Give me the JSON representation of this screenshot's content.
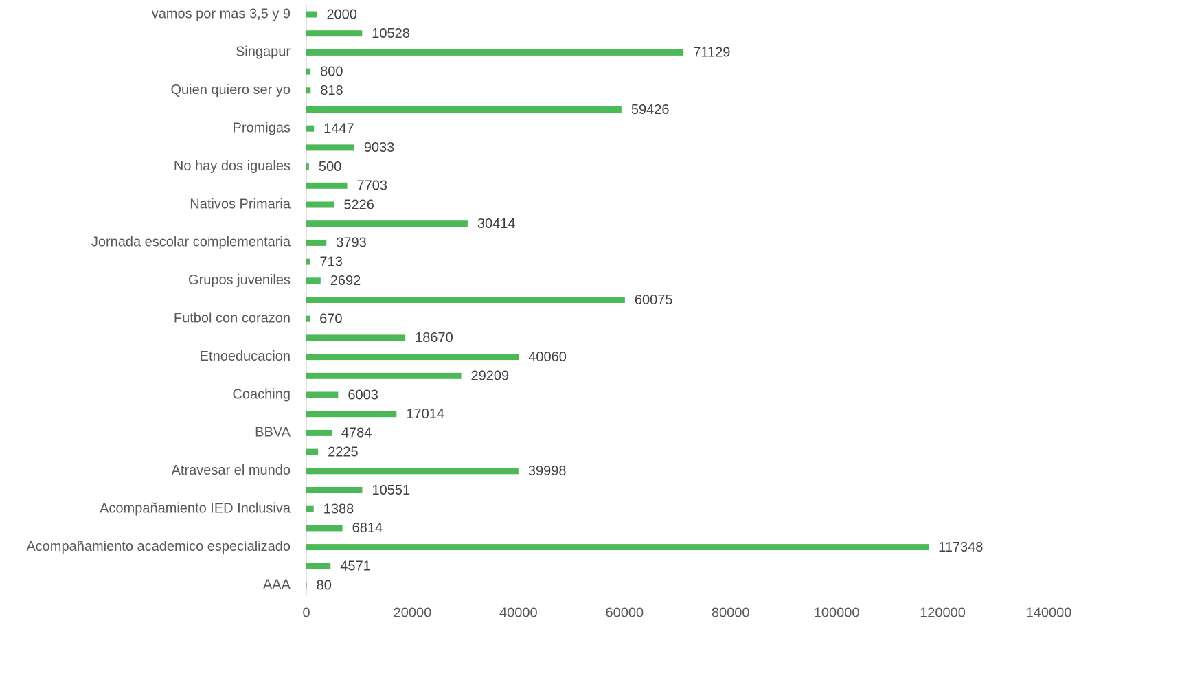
{
  "chart_data": {
    "type": "barh",
    "categories": [
      "vamos por mas 3,5 y 9",
      null,
      "Singapur",
      null,
      "Quien quiero ser yo",
      null,
      "Promigas",
      null,
      "No hay dos iguales",
      null,
      "Nativos Primaria",
      null,
      "Jornada escolar complementaria",
      null,
      "Grupos juveniles",
      null,
      "Futbol con corazon",
      null,
      "Etnoeducacion",
      null,
      "Coaching",
      null,
      "BBVA",
      null,
      "Atravesar el mundo",
      null,
      "Acompañamiento IED Inclusiva",
      null,
      "Acompañamiento academico especializado",
      null,
      "AAA"
    ],
    "values": [
      2000,
      10528,
      71129,
      800,
      818,
      59426,
      1447,
      9033,
      500,
      7703,
      5226,
      30414,
      3793,
      713,
      2692,
      60075,
      670,
      18670,
      40060,
      29209,
      6003,
      17014,
      4784,
      2225,
      39998,
      10551,
      1388,
      6814,
      117348,
      4571,
      80
    ],
    "color": "#4cb857",
    "xlim": [
      0,
      140000
    ],
    "xticks": [
      0,
      20000,
      40000,
      60000,
      80000,
      100000,
      120000,
      140000
    ],
    "grid": false
  }
}
